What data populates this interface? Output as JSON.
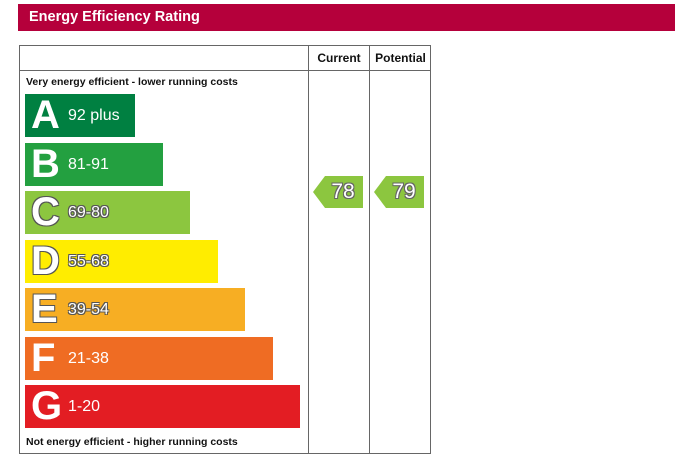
{
  "header": {
    "title": "Energy Efficiency Rating"
  },
  "chart_data": {
    "type": "bar",
    "columns": {
      "current": "Current",
      "potential": "Potential"
    },
    "top_note": "Very energy efficient - lower running costs",
    "bottom_note": "Not energy efficient - higher running costs",
    "bands": [
      {
        "letter": "A",
        "range": "92 plus",
        "color": "#008041",
        "outline": false
      },
      {
        "letter": "B",
        "range": "81-91",
        "color": "#23a040",
        "outline": false
      },
      {
        "letter": "C",
        "range": "69-80",
        "color": "#8cc63f",
        "outline": true
      },
      {
        "letter": "D",
        "range": "55-68",
        "color": "#ffed00",
        "outline": true
      },
      {
        "letter": "E",
        "range": "39-54",
        "color": "#f7ae23",
        "outline": true
      },
      {
        "letter": "F",
        "range": "21-38",
        "color": "#ef6c23",
        "outline": false
      },
      {
        "letter": "G",
        "range": "1-20",
        "color": "#e31d23",
        "outline": false
      }
    ],
    "current": {
      "value": 78,
      "band": "C",
      "color": "#8cc63f"
    },
    "potential": {
      "value": 79,
      "band": "C",
      "color": "#8cc63f"
    }
  }
}
